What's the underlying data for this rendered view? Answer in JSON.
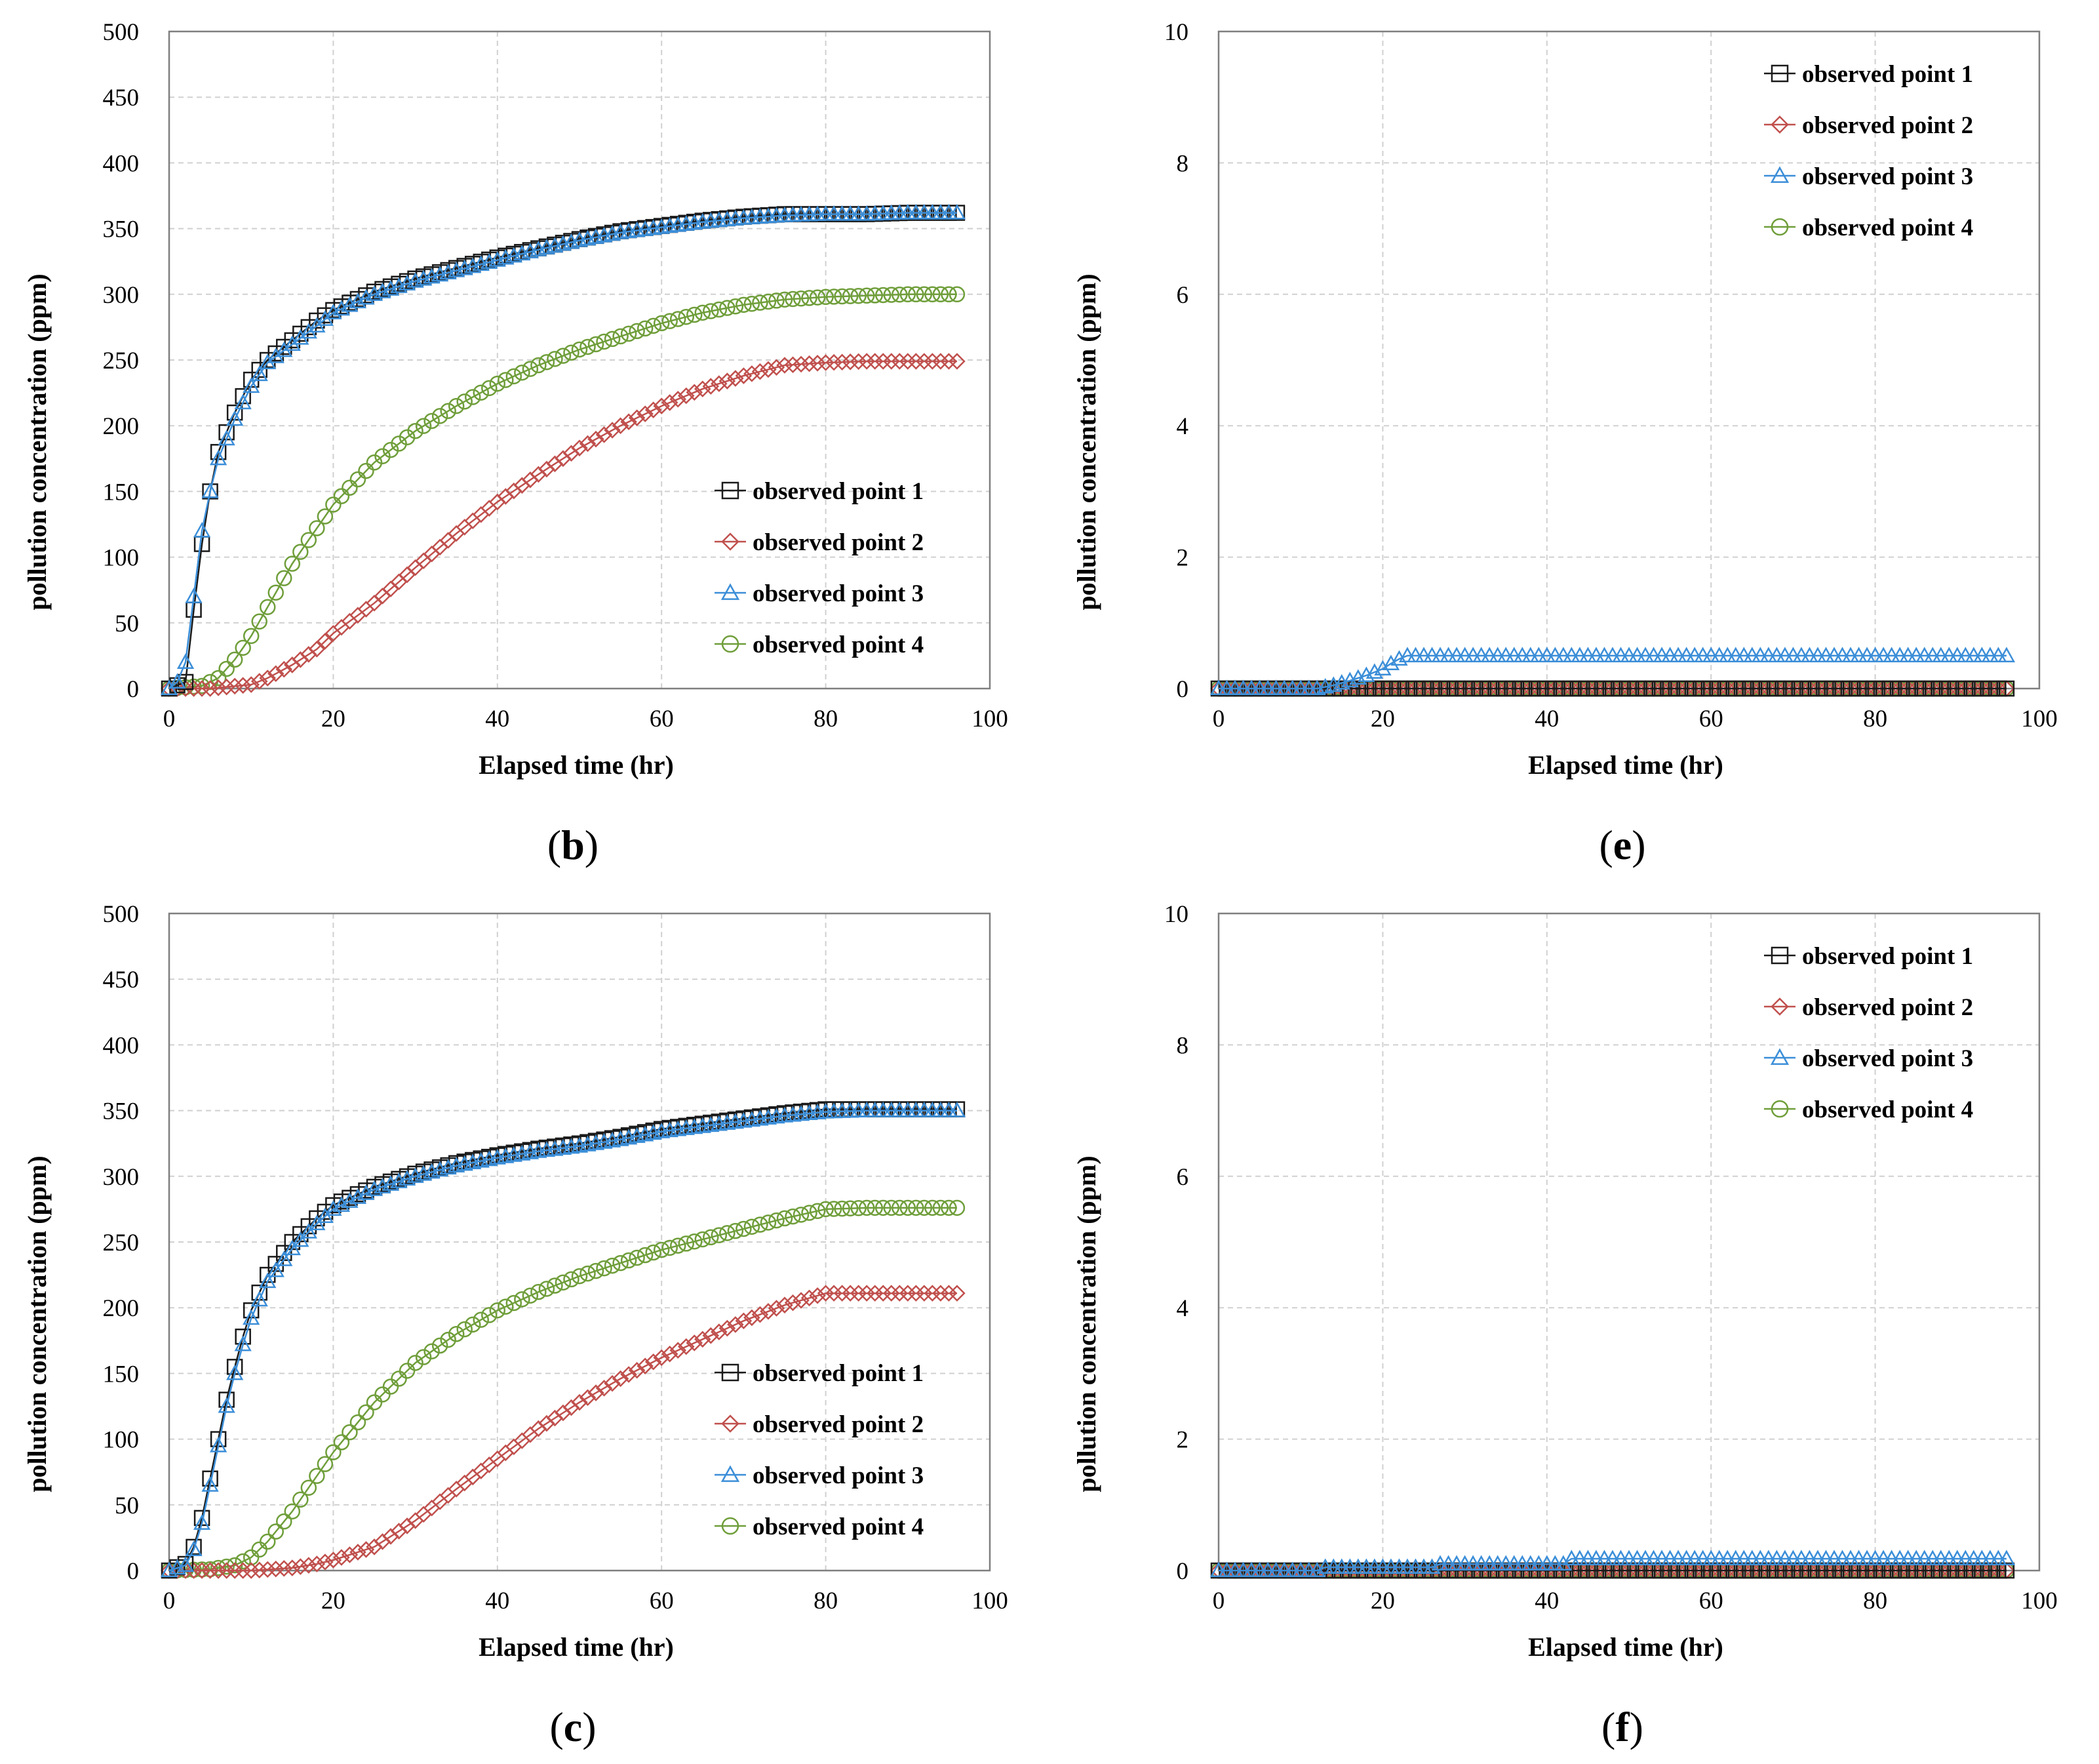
{
  "colors": {
    "point1": "#1a1a1a",
    "point2": "#c0504d",
    "point3": "#3b8ed8",
    "point4": "#6f9e3a",
    "grid": "#d0d0d0",
    "frame": "#7f7f7f"
  },
  "chart_data": [
    {
      "id": "b",
      "type": "line",
      "caption_letter": "b",
      "xlabel": "Elapsed time (hr)",
      "ylabel": "pollution concentration (ppm)",
      "xlim": [
        0,
        100
      ],
      "ylim": [
        0,
        500
      ],
      "xticks": [
        "0",
        "20",
        "40",
        "60",
        "80",
        "100"
      ],
      "yticks": [
        "0",
        "50",
        "100",
        "150",
        "200",
        "250",
        "300",
        "350",
        "400",
        "450",
        "500"
      ],
      "grid": "dashed",
      "legend_position": "lower-right",
      "series": [
        {
          "name": "observed point 1",
          "marker": "square",
          "x": [
            0,
            2,
            3,
            4,
            5,
            6,
            8,
            10,
            12,
            15,
            18,
            20,
            25,
            30,
            35,
            40,
            45,
            50,
            55,
            60,
            65,
            70,
            75,
            80,
            85,
            90,
            96
          ],
          "values": [
            0,
            5,
            60,
            110,
            150,
            180,
            210,
            235,
            250,
            265,
            280,
            288,
            302,
            312,
            320,
            328,
            335,
            342,
            348,
            352,
            356,
            359,
            361,
            361,
            361,
            362,
            362
          ]
        },
        {
          "name": "observed point 2",
          "marker": "diamond",
          "x": [
            0,
            5,
            10,
            12,
            15,
            18,
            20,
            25,
            30,
            35,
            40,
            45,
            50,
            55,
            60,
            65,
            70,
            75,
            80,
            85,
            90,
            96
          ],
          "values": [
            0,
            0,
            3,
            8,
            18,
            30,
            42,
            65,
            92,
            118,
            142,
            163,
            183,
            200,
            215,
            228,
            238,
            246,
            248,
            249,
            249,
            249
          ]
        },
        {
          "name": "observed point 3",
          "marker": "triangle",
          "x": [
            0,
            1,
            2,
            3,
            4,
            5,
            6,
            8,
            10,
            12,
            15,
            18,
            20,
            25,
            30,
            35,
            40,
            45,
            50,
            55,
            60,
            65,
            70,
            75,
            80,
            85,
            90,
            96
          ],
          "values": [
            0,
            5,
            20,
            70,
            120,
            150,
            175,
            205,
            230,
            248,
            262,
            276,
            286,
            300,
            310,
            318,
            326,
            334,
            341,
            347,
            351,
            355,
            358,
            360,
            361,
            361,
            362,
            362
          ]
        },
        {
          "name": "observed point 4",
          "marker": "circle",
          "x": [
            0,
            4,
            6,
            8,
            10,
            12,
            15,
            18,
            20,
            25,
            30,
            35,
            40,
            45,
            50,
            55,
            60,
            65,
            70,
            75,
            80,
            85,
            90,
            96
          ],
          "values": [
            0,
            2,
            8,
            22,
            40,
            62,
            95,
            122,
            140,
            172,
            196,
            215,
            232,
            246,
            258,
            268,
            278,
            286,
            292,
            296,
            298,
            299,
            300,
            300
          ]
        }
      ]
    },
    {
      "id": "e",
      "type": "line",
      "caption_letter": "e",
      "xlabel": "Elapsed time (hr)",
      "ylabel": "pollution concentration (ppm)",
      "xlim": [
        0,
        100
      ],
      "ylim": [
        0,
        10
      ],
      "xticks": [
        "0",
        "20",
        "40",
        "60",
        "80",
        "100"
      ],
      "yticks": [
        "0",
        "2",
        "4",
        "6",
        "8",
        "10"
      ],
      "grid": "dashed",
      "legend_position": "top-right",
      "series": [
        {
          "name": "observed point 1",
          "marker": "square",
          "x": [
            0,
            20,
            40,
            60,
            80,
            96
          ],
          "values": [
            0,
            0,
            0,
            0,
            0,
            0
          ]
        },
        {
          "name": "observed point 2",
          "marker": "diamond",
          "x": [
            0,
            20,
            40,
            60,
            80,
            96
          ],
          "values": [
            0,
            0,
            0,
            0,
            0,
            0
          ]
        },
        {
          "name": "observed point 3",
          "marker": "triangle",
          "x": [
            0,
            12,
            14,
            16,
            18,
            20,
            21,
            22,
            23,
            30,
            40,
            50,
            60,
            70,
            80,
            90,
            96
          ],
          "values": [
            0,
            0,
            0.05,
            0.12,
            0.2,
            0.3,
            0.38,
            0.45,
            0.5,
            0.5,
            0.5,
            0.5,
            0.5,
            0.5,
            0.5,
            0.5,
            0.5
          ]
        },
        {
          "name": "observed point 4",
          "marker": "circle",
          "x": [
            0,
            20,
            40,
            60,
            80,
            96
          ],
          "values": [
            0,
            0,
            0,
            0,
            0,
            0
          ]
        }
      ]
    },
    {
      "id": "c",
      "type": "line",
      "caption_letter": "c",
      "xlabel": "Elapsed time (hr)",
      "ylabel": "pollution concentration (ppm)",
      "xlim": [
        0,
        100
      ],
      "ylim": [
        0,
        500
      ],
      "xticks": [
        "0",
        "20",
        "40",
        "60",
        "80",
        "100"
      ],
      "yticks": [
        "0",
        "50",
        "100",
        "150",
        "200",
        "250",
        "300",
        "350",
        "400",
        "450",
        "500"
      ],
      "grid": "dashed",
      "legend_position": "lower-right",
      "series": [
        {
          "name": "observed point 1",
          "marker": "square",
          "x": [
            0,
            2,
            3,
            4,
            5,
            6,
            7,
            8,
            9,
            10,
            12,
            15,
            18,
            20,
            25,
            30,
            35,
            40,
            45,
            50,
            55,
            60,
            65,
            70,
            75,
            80,
            85,
            90,
            96
          ],
          "values": [
            0,
            5,
            18,
            40,
            70,
            100,
            130,
            155,
            178,
            198,
            225,
            250,
            268,
            278,
            292,
            302,
            310,
            316,
            321,
            325,
            330,
            336,
            340,
            344,
            348,
            351,
            351,
            351,
            351
          ]
        },
        {
          "name": "observed point 2",
          "marker": "diamond",
          "x": [
            0,
            10,
            15,
            18,
            20,
            25,
            30,
            35,
            40,
            45,
            50,
            55,
            60,
            65,
            70,
            75,
            80,
            85,
            90,
            96
          ],
          "values": [
            0,
            0,
            2,
            5,
            8,
            18,
            38,
            62,
            85,
            108,
            128,
            146,
            162,
            176,
            190,
            202,
            211,
            211,
            211,
            211
          ]
        },
        {
          "name": "observed point 3",
          "marker": "triangle",
          "x": [
            0,
            2,
            3,
            4,
            5,
            6,
            7,
            8,
            9,
            10,
            12,
            15,
            18,
            20,
            25,
            30,
            35,
            40,
            45,
            50,
            55,
            60,
            65,
            70,
            75,
            80,
            85,
            90,
            96
          ],
          "values": [
            0,
            4,
            16,
            36,
            65,
            95,
            125,
            150,
            172,
            192,
            220,
            245,
            264,
            275,
            290,
            300,
            308,
            314,
            319,
            323,
            328,
            334,
            338,
            342,
            346,
            349,
            350,
            350,
            350
          ]
        },
        {
          "name": "observed point 4",
          "marker": "circle",
          "x": [
            0,
            5,
            8,
            10,
            12,
            15,
            18,
            20,
            25,
            30,
            35,
            40,
            45,
            50,
            55,
            60,
            65,
            70,
            75,
            80,
            85,
            90,
            96
          ],
          "values": [
            0,
            1,
            4,
            10,
            22,
            45,
            72,
            90,
            128,
            158,
            180,
            198,
            212,
            224,
            234,
            244,
            252,
            260,
            268,
            275,
            276,
            276,
            276
          ]
        }
      ]
    },
    {
      "id": "f",
      "type": "line",
      "caption_letter": "f",
      "xlabel": "Elapsed time (hr)",
      "ylabel": "pollution concentration (ppm)",
      "xlim": [
        0,
        100
      ],
      "ylim": [
        0,
        10
      ],
      "xticks": [
        "0",
        "20",
        "40",
        "60",
        "80",
        "100"
      ],
      "yticks": [
        "0",
        "2",
        "4",
        "6",
        "8",
        "10"
      ],
      "grid": "dashed",
      "legend_position": "top-right",
      "series": [
        {
          "name": "observed point 1",
          "marker": "square",
          "x": [
            0,
            20,
            40,
            60,
            80,
            96
          ],
          "values": [
            0,
            0,
            0,
            0,
            0,
            0
          ]
        },
        {
          "name": "observed point 2",
          "marker": "diamond",
          "x": [
            0,
            20,
            40,
            60,
            80,
            96
          ],
          "values": [
            0,
            0,
            0,
            0,
            0,
            0
          ]
        },
        {
          "name": "observed point 3",
          "marker": "triangle",
          "x": [
            0,
            12,
            13,
            26,
            27,
            42,
            43,
            60,
            80,
            96
          ],
          "values": [
            0,
            0,
            0.05,
            0.05,
            0.1,
            0.1,
            0.18,
            0.18,
            0.18,
            0.18
          ]
        },
        {
          "name": "observed point 4",
          "marker": "circle",
          "x": [
            0,
            20,
            40,
            60,
            80,
            96
          ],
          "values": [
            0,
            0,
            0,
            0,
            0,
            0
          ]
        }
      ]
    }
  ]
}
